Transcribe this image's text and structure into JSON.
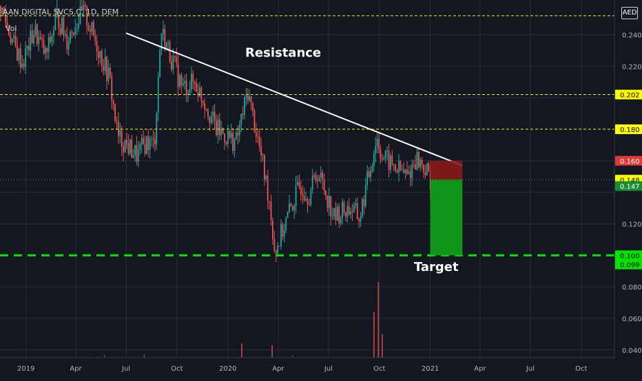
{
  "header": {
    "symbol": "AAN DIGITAL SVCS.C, 1D, DEM",
    "volume_label": "Vol",
    "currency": "AED"
  },
  "colors": {
    "background": "#131722",
    "up": "#26a69a",
    "down": "#ef5350",
    "grid": "#2a2e39",
    "axis_text": "#b2b5be",
    "level_line": "#ffff00",
    "target_line": "#00e600",
    "stop_zone": "#8b1a1a",
    "profit_zone": "#0f9d1a"
  },
  "chart_data": {
    "type": "candlestick",
    "title": "AAN DIGITAL SVCS.C, 1D, DEM",
    "x_ticks": [
      "2019",
      "Apr",
      "Jul",
      "Oct",
      "2020",
      "Apr",
      "Jul",
      "Oct",
      "2021",
      "Apr",
      "Jul",
      "Oct"
    ],
    "y_ticks": [
      0.04,
      0.06,
      0.08,
      0.12,
      0.22,
      0.24
    ],
    "y_tick_labels": [
      "0.040",
      "0.060",
      "0.080",
      "0.120",
      "0.220",
      "0.240"
    ],
    "ylim": [
      0.022,
      0.262
    ],
    "x_range": [
      "2018-11-15",
      "2021-11-30"
    ],
    "grid": true,
    "price_path": [
      [
        "2018-11-15",
        0.258
      ],
      [
        "2018-12-10",
        0.232
      ],
      [
        "2018-12-25",
        0.222
      ],
      [
        "2019-01-15",
        0.243
      ],
      [
        "2019-02-05",
        0.226
      ],
      [
        "2019-02-25",
        0.252
      ],
      [
        "2019-03-15",
        0.237
      ],
      [
        "2019-03-31",
        0.248
      ],
      [
        "2019-04-15",
        0.254
      ],
      [
        "2019-05-10",
        0.232
      ],
      [
        "2019-05-31",
        0.212
      ],
      [
        "2019-06-15",
        0.175
      ],
      [
        "2019-07-01",
        0.17
      ],
      [
        "2019-07-20",
        0.163
      ],
      [
        "2019-08-05",
        0.172
      ],
      [
        "2019-08-20",
        0.17
      ],
      [
        "2019-09-01",
        0.243
      ],
      [
        "2019-09-20",
        0.225
      ],
      [
        "2019-10-10",
        0.206
      ],
      [
        "2019-10-31",
        0.21
      ],
      [
        "2019-11-20",
        0.197
      ],
      [
        "2019-12-10",
        0.18
      ],
      [
        "2019-12-31",
        0.175
      ],
      [
        "2020-01-15",
        0.172
      ],
      [
        "2020-02-05",
        0.204
      ],
      [
        "2020-02-25",
        0.17
      ],
      [
        "2020-03-15",
        0.135
      ],
      [
        "2020-03-25",
        0.102
      ],
      [
        "2020-04-10",
        0.118
      ],
      [
        "2020-04-25",
        0.132
      ],
      [
        "2020-05-10",
        0.145
      ],
      [
        "2020-05-25",
        0.138
      ],
      [
        "2020-06-10",
        0.153
      ],
      [
        "2020-06-25",
        0.14
      ],
      [
        "2020-07-10",
        0.124
      ],
      [
        "2020-07-25",
        0.128
      ],
      [
        "2020-08-10",
        0.13
      ],
      [
        "2020-08-25",
        0.123
      ],
      [
        "2020-09-10",
        0.15
      ],
      [
        "2020-09-25",
        0.175
      ],
      [
        "2020-10-05",
        0.163
      ],
      [
        "2020-10-20",
        0.158
      ],
      [
        "2020-11-05",
        0.154
      ],
      [
        "2020-11-20",
        0.15
      ],
      [
        "2020-12-05",
        0.162
      ],
      [
        "2020-12-20",
        0.156
      ],
      [
        "2020-12-31",
        0.148
      ]
    ],
    "volume_spikes": [
      [
        "2020-09-28",
        0.083
      ],
      [
        "2020-09-20",
        0.064
      ],
      [
        "2020-10-05",
        0.05
      ],
      [
        "2020-03-20",
        0.043
      ],
      [
        "2020-01-25",
        0.044
      ]
    ],
    "levels": [
      {
        "value": 0.252,
        "style": "dashed",
        "color": "#ffff00"
      },
      {
        "value": 0.202,
        "label": "0.202",
        "style": "dashed",
        "color": "#ffff00"
      },
      {
        "value": 0.18,
        "label": "0.180",
        "style": "dashed",
        "color": "#ffff00"
      },
      {
        "value": 0.1,
        "label": "0.100",
        "style": "dashed-thick",
        "color": "#00e600"
      }
    ],
    "resistance_line": {
      "from": [
        "2019-07-01",
        0.241
      ],
      "to": [
        "2021-02-28",
        0.157
      ]
    },
    "position": {
      "start": "2021-01-01",
      "end": "2021-02-28",
      "entry": 0.148,
      "stop": 0.16,
      "target": 0.1
    },
    "price_labels": [
      {
        "value": 0.16,
        "label": "0.160",
        "bg": "#e53935",
        "fg": "#ffffff"
      },
      {
        "value": 0.148,
        "label": "0.148",
        "bg": "#ffff00",
        "fg": "#000000"
      },
      {
        "value": 0.147,
        "label": "0.147",
        "bg": "#1b8a34",
        "fg": "#ffffff"
      },
      {
        "value": 0.099,
        "label": "0.099",
        "bg": "#00e600",
        "fg": "#000000"
      }
    ],
    "annotations": {
      "resistance": {
        "text": "Resistance",
        "at": [
          "2020-01-20",
          0.226
        ]
      },
      "target": {
        "text": "Target",
        "at": [
          "2020-11-20",
          0.09
        ]
      }
    }
  }
}
